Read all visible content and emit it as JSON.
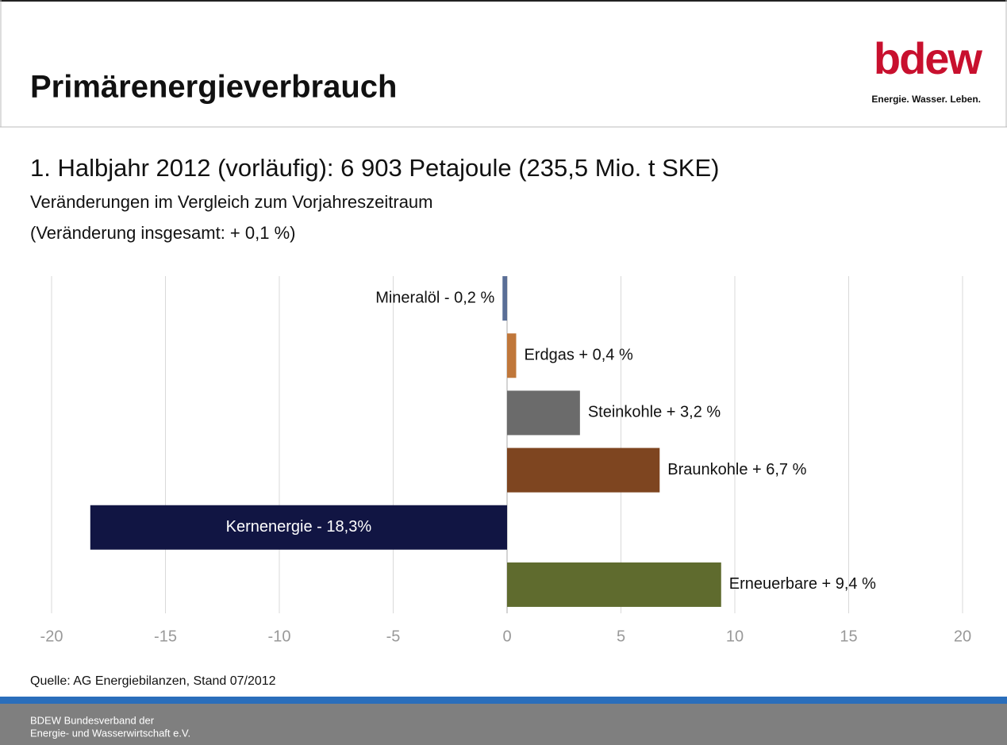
{
  "header": {
    "title": "Primärenergieverbrauch",
    "logo": "bdew",
    "tagline": "Energie. Wasser. Leben."
  },
  "chart_data": {
    "type": "hbar",
    "title": "1. Halbjahr 2012 (vorläufig): 6 903 Petajoule (235,5 Mio. t SKE)",
    "subtitle": [
      "Veränderungen im Vergleich zum Vorjahreszeitraum",
      "(Veränderung insgesamt: + 0,1 %)"
    ],
    "values": [
      -0.2,
      0.4,
      3.2,
      6.7,
      -18.3,
      9.4
    ],
    "value_labels": [
      "Mineralöl - 0,2 %",
      "Erdgas + 0,4 %",
      "Steinkohle + 3,2 %",
      "Braunkohle + 6,7 %",
      "Kernenergie - 18,3%",
      "Erneuerbare + 9,4 %"
    ],
    "colors": [
      "#5a6e96",
      "#c0773a",
      "#6b6b6b",
      "#7e4520",
      "#111543",
      "#5f6b2e"
    ],
    "xlim": [
      -20,
      20
    ],
    "xticks": [
      -20,
      -15,
      -10,
      -5,
      0,
      5,
      10,
      15,
      20
    ],
    "grid": true,
    "source": "Quelle: AG Energiebilanzen, Stand 07/2012"
  },
  "footer": [
    "BDEW Bundesverband der",
    "Energie- und Wasserwirtschaft e.V."
  ]
}
